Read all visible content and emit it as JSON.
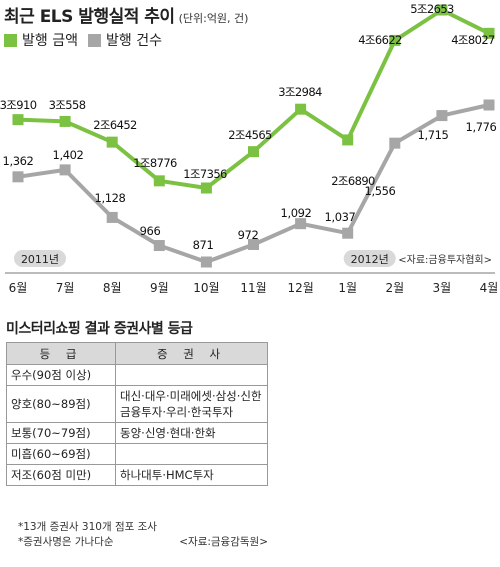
{
  "header": {
    "title": "최근 ELS 발행실적 추이",
    "unit": "(단위:억원, 건)"
  },
  "chart_data": {
    "type": "line",
    "categories": [
      "6월",
      "7월",
      "8월",
      "9월",
      "10월",
      "11월",
      "12월",
      "1월",
      "2월",
      "3월",
      "4월"
    ],
    "year_markers": [
      {
        "label": "2011년",
        "index": 0
      },
      {
        "label": "2012년",
        "index": 7
      }
    ],
    "source": "<자료:금융투자협회>",
    "series": [
      {
        "name": "발행 금액",
        "color": "#7bc142",
        "values": [
          30910,
          30558,
          26452,
          18776,
          17356,
          24565,
          32984,
          26890,
          46622,
          52653,
          48027
        ],
        "labels": [
          "3조910",
          "3조558",
          "2조6452",
          "1조8776",
          "1조7356",
          "2조4565",
          "3조2984",
          "2조6890",
          "4조6622",
          "5조2653",
          "4조8027"
        ]
      },
      {
        "name": "발행 건수",
        "color": "#a6a6a6",
        "values": [
          1362,
          1402,
          1128,
          966,
          871,
          972,
          1092,
          1037,
          1556,
          1715,
          1776
        ],
        "labels": [
          "1,362",
          "1,402",
          "1,128",
          "966",
          "871",
          "972",
          "1,092",
          "1,037",
          "1,556",
          "1,715",
          "1,776"
        ]
      }
    ]
  },
  "grade_table": {
    "title": "미스터리쇼핑 결과 증권사별 등급",
    "headers": [
      "등 급",
      "증 권 사"
    ],
    "rows": [
      {
        "grade": "우수(90점 이상)",
        "firms": ""
      },
      {
        "grade": "양호(80~89점)",
        "firms": "대신·대우·미래에셋·삼성·신한금융투자·우리·한국투자"
      },
      {
        "grade": "보통(70~79점)",
        "firms": "동양·신영·현대·한화"
      },
      {
        "grade": "미흡(60~69점)",
        "firms": ""
      },
      {
        "grade": "저조(60점 미만)",
        "firms": "하나대투·HMC투자"
      }
    ],
    "notes": [
      "*13개 증권사 310개 점포 조사",
      "*증권사명은 가나다순"
    ],
    "source": "<자료:금융감독원>"
  }
}
